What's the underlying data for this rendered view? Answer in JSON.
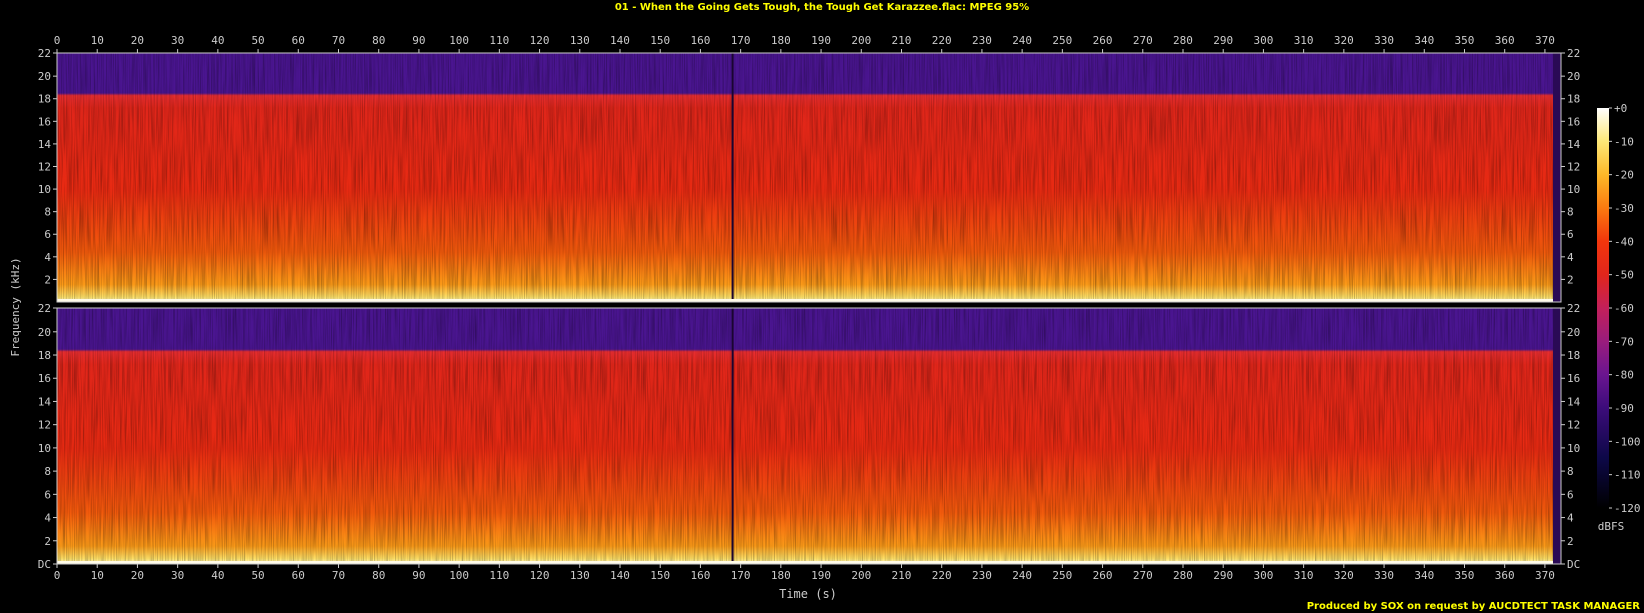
{
  "chart_data": {
    "type": "heatmap",
    "title": "01 - When the Going Gets Tough, the Tough Get Karazzee.flac: MPEG 95%",
    "xlabel": "Time (s)",
    "ylabel": "Frequency (kHz)",
    "xlim": [
      0,
      374
    ],
    "x_ticks": [
      0,
      10,
      20,
      30,
      40,
      50,
      60,
      70,
      80,
      90,
      100,
      110,
      120,
      130,
      140,
      150,
      160,
      170,
      180,
      190,
      200,
      210,
      220,
      230,
      240,
      250,
      260,
      270,
      280,
      290,
      300,
      310,
      320,
      330,
      340,
      350,
      360,
      370
    ],
    "ylim": [
      0,
      22.05
    ],
    "y_ticks": [
      "DC",
      "2",
      "4",
      "6",
      "8",
      "10",
      "12",
      "14",
      "16",
      "18",
      "20",
      "22"
    ],
    "channels": 2,
    "colorbar": {
      "label": "dBFS",
      "range": [
        -120,
        0
      ],
      "ticks": [
        "+0",
        "-10",
        "-20",
        "-30",
        "-40",
        "-50",
        "-60",
        "-70",
        "-80",
        "-90",
        "-100",
        "-110",
        "-120"
      ],
      "stops": [
        {
          "db": -120,
          "color": "#000000"
        },
        {
          "db": -105,
          "color": "#0d0848"
        },
        {
          "db": -90,
          "color": "#3c0c7a"
        },
        {
          "db": -80,
          "color": "#6a1590"
        },
        {
          "db": -70,
          "color": "#9a1c7c"
        },
        {
          "db": -60,
          "color": "#c3205a"
        },
        {
          "db": -50,
          "color": "#e1261c"
        },
        {
          "db": -40,
          "color": "#f2360c"
        },
        {
          "db": -30,
          "color": "#fb7a10"
        },
        {
          "db": -20,
          "color": "#fdb828"
        },
        {
          "db": -10,
          "color": "#fde878"
        },
        {
          "db": 0,
          "color": "#ffffff"
        }
      ]
    },
    "features": {
      "lowpass_cutoff_khz": 18.5,
      "upper_band_color": "#4a1590",
      "track_break_s": 168,
      "track_end_s": 372
    },
    "footer": "Produced by SOX on request by AUCDTECT TASK MANAGER"
  }
}
